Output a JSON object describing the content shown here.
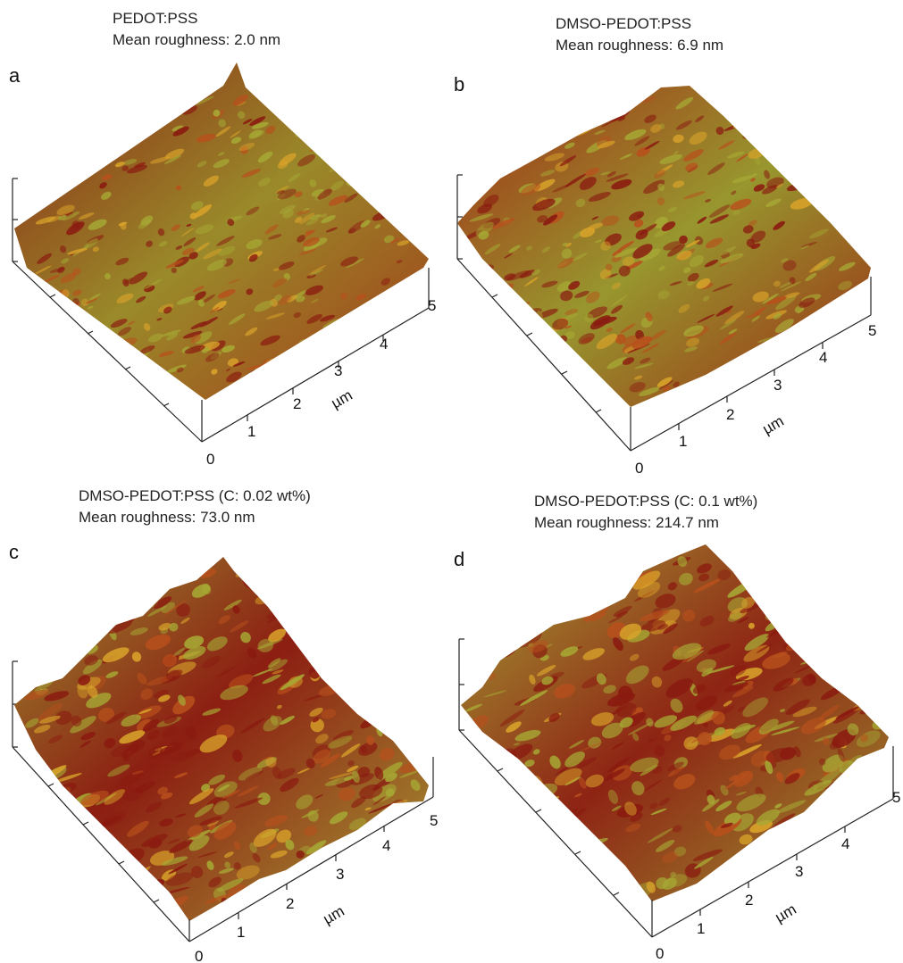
{
  "panels": [
    {
      "letter": "a",
      "material": "PEDOT:PSS",
      "roughness": "Mean roughness: 2.0 nm",
      "x_ticks": [
        "0",
        "1",
        "2",
        "3",
        "4",
        "5"
      ],
      "unit": "µm"
    },
    {
      "letter": "b",
      "material": "DMSO-PEDOT:PSS",
      "roughness": "Mean roughness: 6.9 nm",
      "x_ticks": [
        "0",
        "1",
        "2",
        "3",
        "4",
        "5"
      ],
      "unit": "µm"
    },
    {
      "letter": "c",
      "material": "DMSO-PEDOT:PSS (C: 0.02 wt%)",
      "roughness": "Mean roughness: 73.0 nm",
      "x_ticks": [
        "0",
        "1",
        "2",
        "3",
        "4",
        "5"
      ],
      "unit": "µm"
    },
    {
      "letter": "d",
      "material": "DMSO-PEDOT:PSS (C: 0.1 wt%)",
      "roughness": "Mean roughness: 214.7 nm",
      "x_ticks": [
        "0",
        "1",
        "2",
        "3",
        "4",
        "5"
      ],
      "unit": "µm"
    }
  ],
  "colors": {
    "dark": "#8a1a10",
    "mid": "#b8501c",
    "light": "#a6a834",
    "highlight": "#d9a32a"
  }
}
